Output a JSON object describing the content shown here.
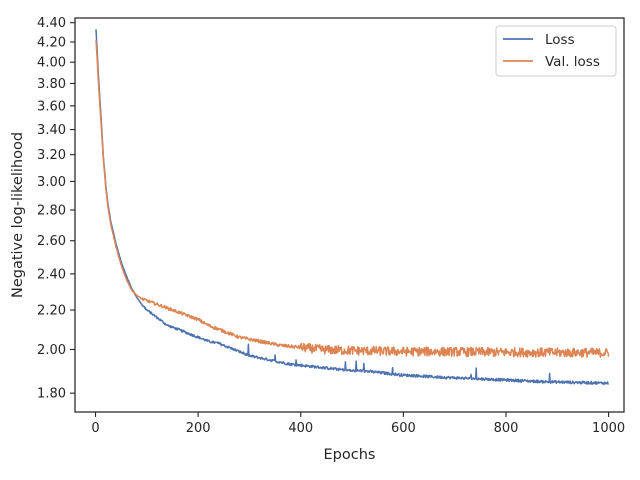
{
  "chart_data": {
    "type": "line",
    "title": "",
    "xlabel": "Epochs",
    "ylabel": "Negative log-likelihood",
    "xlim": [
      -40,
      1030
    ],
    "ylim": [
      1.72,
      4.45
    ],
    "yscale": "log",
    "grid": false,
    "legend_position": "top-right",
    "xticks": [
      0,
      200,
      400,
      600,
      800,
      1000
    ],
    "xtick_labels": [
      "0",
      "200",
      "400",
      "600",
      "800",
      "1000"
    ],
    "yticks": [
      1.8,
      2.0,
      2.2,
      2.4,
      2.6,
      2.8,
      3.0,
      3.2,
      3.4,
      3.6,
      3.8,
      4.0,
      4.2,
      4.4
    ],
    "ytick_labels": [
      "1.80",
      "2.00",
      "2.20",
      "2.40",
      "2.60",
      "2.80",
      "3.00",
      "3.20",
      "3.40",
      "3.60",
      "3.80",
      "4.00",
      "4.20",
      "4.40"
    ],
    "series": [
      {
        "name": "Loss",
        "color": "#4c72b0",
        "x": [
          1,
          5,
          10,
          15,
          20,
          25,
          30,
          40,
          50,
          60,
          70,
          80,
          90,
          100,
          120,
          140,
          160,
          180,
          200,
          220,
          240,
          260,
          280,
          300,
          320,
          340,
          360,
          380,
          400,
          420,
          440,
          460,
          480,
          500,
          520,
          540,
          560,
          580,
          600,
          620,
          640,
          660,
          680,
          700,
          720,
          740,
          760,
          780,
          800,
          820,
          840,
          860,
          880,
          900,
          920,
          940,
          960,
          980,
          1000
        ],
        "y": [
          4.33,
          3.92,
          3.55,
          3.2,
          2.97,
          2.82,
          2.72,
          2.58,
          2.47,
          2.39,
          2.32,
          2.27,
          2.23,
          2.2,
          2.16,
          2.12,
          2.1,
          2.08,
          2.06,
          2.04,
          2.03,
          2.01,
          1.99,
          1.97,
          1.96,
          1.95,
          1.94,
          1.93,
          1.925,
          1.92,
          1.915,
          1.91,
          1.905,
          1.9,
          1.9,
          1.895,
          1.89,
          1.885,
          1.88,
          1.878,
          1.875,
          1.872,
          1.87,
          1.868,
          1.866,
          1.864,
          1.862,
          1.86,
          1.858,
          1.856,
          1.854,
          1.852,
          1.85,
          1.849,
          1.848,
          1.847,
          1.846,
          1.845,
          1.844
        ]
      },
      {
        "name": "Val. loss",
        "color": "#dd8452",
        "x": [
          1,
          5,
          10,
          15,
          20,
          25,
          30,
          40,
          50,
          60,
          70,
          80,
          90,
          100,
          120,
          140,
          160,
          180,
          200,
          220,
          240,
          260,
          280,
          300,
          320,
          340,
          360,
          380,
          400,
          420,
          440,
          460,
          480,
          500,
          520,
          540,
          560,
          580,
          600,
          620,
          640,
          660,
          680,
          700,
          720,
          740,
          760,
          780,
          800,
          820,
          840,
          860,
          880,
          900,
          920,
          940,
          960,
          980,
          1000
        ],
        "y": [
          4.22,
          3.86,
          3.5,
          3.18,
          2.95,
          2.8,
          2.7,
          2.56,
          2.45,
          2.37,
          2.31,
          2.28,
          2.26,
          2.25,
          2.23,
          2.21,
          2.19,
          2.17,
          2.15,
          2.12,
          2.1,
          2.08,
          2.06,
          2.05,
          2.04,
          2.03,
          2.02,
          2.015,
          2.01,
          2.005,
          2.0,
          1.998,
          1.996,
          1.995,
          1.994,
          1.993,
          1.992,
          1.991,
          1.99,
          1.99,
          1.99,
          1.99,
          1.989,
          1.989,
          1.988,
          1.988,
          1.988,
          1.987,
          1.987,
          1.987,
          1.986,
          1.986,
          1.986,
          1.985,
          1.985,
          1.985,
          1.985,
          1.984,
          1.984
        ]
      }
    ]
  }
}
